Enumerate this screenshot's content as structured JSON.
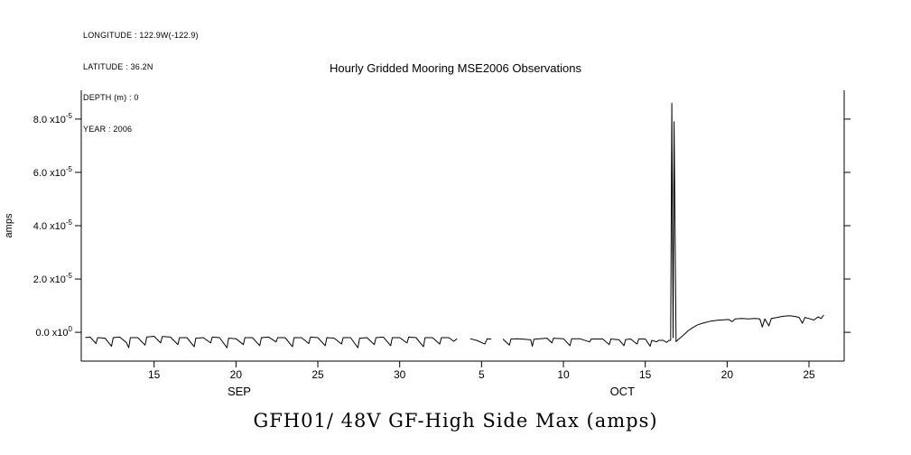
{
  "meta": {
    "longitude": "LONGITUDE : 122.9W(-122.9)",
    "latitude": "LATITUDE : 36.2N",
    "depth": "DEPTH (m) : 0",
    "year": "YEAR : 2006"
  },
  "title": "Hourly Gridded Mooring MSE2006 Observations",
  "bottom_title": "GFH01/ 48V GF-High Side Max (amps)",
  "colors": {
    "background": "#ffffff",
    "line": "#000000"
  },
  "chart_data": {
    "type": "line",
    "title": "Hourly Gridded Mooring MSE2006 Observations",
    "subtitle": "GFH01/ 48V GF-High Side Max (amps)",
    "ylabel": "amps",
    "y_unit": "amps",
    "y_value_scale": "1e-5",
    "grid": false,
    "legend": "none",
    "x_encoding": "day index (days since Sep 1, 2006)",
    "xlim": [
      10.55,
      57.15
    ],
    "ylim": [
      -1.08,
      9.08
    ],
    "yticks": [
      {
        "v": 0,
        "mant": "0.0",
        "exp": "0",
        "label": "0.0 x10^0"
      },
      {
        "v": 2,
        "mant": "2.0",
        "exp": "-5",
        "label": "2.0 x10^-5"
      },
      {
        "v": 4,
        "mant": "4.0",
        "exp": "-5",
        "label": "4.0 x10^-5"
      },
      {
        "v": 6,
        "mant": "6.0",
        "exp": "-5",
        "label": "6.0 x10^-5"
      },
      {
        "v": 8,
        "mant": "8.0",
        "exp": "-5",
        "label": "8.0 x10^-5"
      }
    ],
    "xticks": [
      {
        "v": 15,
        "label": "15"
      },
      {
        "v": 20,
        "label": "20"
      },
      {
        "v": 25,
        "label": "25"
      },
      {
        "v": 30,
        "label": "30"
      },
      {
        "v": 35,
        "label": "5"
      },
      {
        "v": 40,
        "label": "10"
      },
      {
        "v": 45,
        "label": "15"
      },
      {
        "v": 50,
        "label": "20"
      },
      {
        "v": 55,
        "label": "25"
      }
    ],
    "months": [
      {
        "x": 20.2,
        "label": "SEP"
      },
      {
        "x": 43.6,
        "label": "OCT"
      }
    ],
    "series": [
      {
        "name": "GFH01/ 48V GF-High Side Max (amps)",
        "peak_value_1e-5": 8.6,
        "points": [
          [
            10.8,
            -0.2
          ],
          [
            11.1,
            -0.18
          ],
          [
            11.45,
            -0.42
          ],
          [
            11.55,
            -0.2
          ],
          [
            12.0,
            -0.22
          ],
          [
            12.4,
            -0.52
          ],
          [
            12.5,
            -0.2
          ],
          [
            12.9,
            -0.18
          ],
          [
            13.3,
            -0.38
          ],
          [
            13.45,
            -0.58
          ],
          [
            13.55,
            -0.2
          ],
          [
            14.0,
            -0.2
          ],
          [
            14.45,
            -0.48
          ],
          [
            14.55,
            -0.18
          ],
          [
            15.0,
            -0.15
          ],
          [
            15.4,
            -0.4
          ],
          [
            15.5,
            -0.16
          ],
          [
            16.0,
            -0.18
          ],
          [
            16.45,
            -0.46
          ],
          [
            16.55,
            -0.2
          ],
          [
            17.0,
            -0.2
          ],
          [
            17.45,
            -0.54
          ],
          [
            17.55,
            -0.22
          ],
          [
            18.0,
            -0.2
          ],
          [
            18.45,
            -0.4
          ],
          [
            18.55,
            -0.18
          ],
          [
            19.0,
            -0.2
          ],
          [
            19.45,
            -0.58
          ],
          [
            19.55,
            -0.22
          ],
          [
            20.0,
            -0.24
          ],
          [
            20.45,
            -0.46
          ],
          [
            20.55,
            -0.2
          ],
          [
            21.0,
            -0.2
          ],
          [
            21.45,
            -0.5
          ],
          [
            21.55,
            -0.2
          ],
          [
            22.0,
            -0.18
          ],
          [
            22.45,
            -0.36
          ],
          [
            22.55,
            -0.2
          ],
          [
            23.0,
            -0.2
          ],
          [
            23.45,
            -0.54
          ],
          [
            23.55,
            -0.2
          ],
          [
            24.0,
            -0.2
          ],
          [
            24.45,
            -0.42
          ],
          [
            24.55,
            -0.18
          ],
          [
            25.0,
            -0.2
          ],
          [
            25.45,
            -0.5
          ],
          [
            25.55,
            -0.2
          ],
          [
            26.0,
            -0.22
          ],
          [
            26.45,
            -0.44
          ],
          [
            26.55,
            -0.2
          ],
          [
            27.0,
            -0.2
          ],
          [
            27.45,
            -0.58
          ],
          [
            27.55,
            -0.22
          ],
          [
            28.0,
            -0.2
          ],
          [
            28.45,
            -0.46
          ],
          [
            28.55,
            -0.2
          ],
          [
            29.0,
            -0.18
          ],
          [
            29.45,
            -0.5
          ],
          [
            29.55,
            -0.2
          ],
          [
            30.0,
            -0.2
          ],
          [
            30.45,
            -0.4
          ],
          [
            30.55,
            -0.18
          ],
          [
            31.0,
            -0.2
          ],
          [
            31.45,
            -0.54
          ],
          [
            31.55,
            -0.2
          ],
          [
            32.0,
            -0.2
          ],
          [
            32.45,
            -0.44
          ],
          [
            32.55,
            -0.2
          ],
          [
            33.0,
            -0.2
          ],
          [
            33.3,
            -0.34
          ],
          [
            33.5,
            -0.24
          ],
          null,
          [
            34.3,
            -0.24
          ],
          [
            34.7,
            -0.3
          ],
          [
            35.2,
            -0.44
          ],
          [
            35.35,
            -0.24
          ],
          [
            35.6,
            -0.26
          ],
          null,
          [
            36.3,
            -0.25
          ],
          [
            36.7,
            -0.48
          ],
          [
            36.8,
            -0.25
          ],
          [
            37.2,
            -0.24
          ],
          [
            37.6,
            -0.26
          ],
          [
            38.0,
            -0.28
          ],
          [
            38.1,
            -0.52
          ],
          [
            38.2,
            -0.26
          ],
          [
            39.0,
            -0.22
          ],
          [
            39.3,
            -0.4
          ],
          [
            39.4,
            -0.22
          ],
          [
            40.0,
            -0.24
          ],
          [
            40.4,
            -0.5
          ],
          [
            40.5,
            -0.24
          ],
          [
            41.0,
            -0.24
          ],
          [
            41.6,
            -0.36
          ],
          [
            41.7,
            -0.25
          ],
          [
            42.4,
            -0.25
          ],
          [
            42.8,
            -0.46
          ],
          [
            42.9,
            -0.25
          ],
          [
            43.4,
            -0.28
          ],
          [
            43.7,
            -0.5
          ],
          [
            43.8,
            -0.27
          ],
          [
            44.1,
            -0.25
          ],
          [
            44.5,
            -0.44
          ],
          [
            44.6,
            -0.25
          ],
          [
            45.0,
            -0.25
          ],
          [
            45.3,
            -0.52
          ],
          [
            45.4,
            -0.3
          ],
          [
            45.7,
            -0.36
          ],
          [
            45.8,
            -0.3
          ],
          [
            46.1,
            -0.3
          ],
          [
            46.3,
            -0.38
          ],
          [
            46.45,
            -0.3
          ],
          [
            46.55,
            -0.3
          ],
          [
            46.62,
            8.6
          ],
          [
            46.7,
            -0.2
          ],
          [
            46.76,
            7.9
          ],
          [
            46.88,
            -0.35
          ],
          [
            47.0,
            -0.28
          ],
          [
            47.3,
            -0.12
          ],
          [
            47.6,
            0.05
          ],
          [
            47.9,
            0.18
          ],
          [
            48.2,
            0.28
          ],
          [
            48.6,
            0.36
          ],
          [
            49.0,
            0.42
          ],
          [
            49.4,
            0.45
          ],
          [
            49.8,
            0.47
          ],
          [
            50.1,
            0.48
          ],
          [
            50.3,
            0.4
          ],
          [
            50.5,
            0.5
          ],
          [
            50.9,
            0.52
          ],
          [
            51.3,
            0.5
          ],
          [
            51.7,
            0.52
          ],
          [
            52.0,
            0.5
          ],
          [
            52.15,
            0.2
          ],
          [
            52.3,
            0.5
          ],
          [
            52.55,
            0.24
          ],
          [
            52.7,
            0.52
          ],
          [
            53.0,
            0.55
          ],
          [
            53.4,
            0.6
          ],
          [
            53.8,
            0.62
          ],
          [
            54.1,
            0.6
          ],
          [
            54.4,
            0.56
          ],
          [
            54.6,
            0.34
          ],
          [
            54.75,
            0.56
          ],
          [
            55.0,
            0.52
          ],
          [
            55.3,
            0.46
          ],
          [
            55.55,
            0.58
          ],
          [
            55.75,
            0.52
          ],
          [
            55.9,
            0.65
          ]
        ]
      }
    ]
  }
}
